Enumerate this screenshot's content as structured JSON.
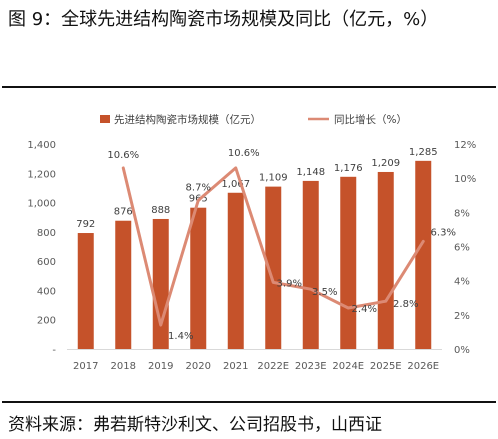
{
  "figure": {
    "title": "图 9：全球先进结构陶瓷市场规模及同比（亿元，%）",
    "source": "资料来源：弗若斯特沙利文、公司招股书，山西证"
  },
  "chart_data": {
    "type": "bar+line",
    "categories": [
      "2017",
      "2018",
      "2019",
      "2020",
      "2021",
      "2022E",
      "2023E",
      "2024E",
      "2025E",
      "2026E"
    ],
    "series": [
      {
        "name": "先进结构陶瓷市场规模（亿元）",
        "type": "bar",
        "axis": "left",
        "color": "#C5522A",
        "values": [
          792,
          876,
          888,
          965,
          1067,
          1109,
          1148,
          1176,
          1209,
          1285
        ],
        "labels": [
          "792",
          "876",
          "888",
          "965",
          "1,067",
          "1,109",
          "1,148",
          "1,176",
          "1,209",
          "1,285"
        ]
      },
      {
        "name": "同比增长（%）",
        "type": "line",
        "axis": "right",
        "color": "#DC8A74",
        "values": [
          null,
          10.6,
          1.4,
          8.7,
          10.6,
          3.9,
          3.5,
          2.4,
          2.8,
          6.3
        ],
        "labels": [
          null,
          "10.6%",
          "1.4%",
          "8.7%",
          "10.6%",
          "3.9%",
          "3.5%",
          "2.4%",
          "2.8%",
          "6.3%"
        ]
      }
    ],
    "left_axis": {
      "min": 0,
      "max": 1400,
      "ticks": [
        0,
        200,
        400,
        600,
        800,
        1000,
        1200,
        1400
      ],
      "tick_labels": [
        "-",
        "200",
        "400",
        "600",
        "800",
        "1,000",
        "1,200",
        "1,400"
      ]
    },
    "right_axis": {
      "min": 0,
      "max": 12,
      "ticks": [
        0,
        2,
        4,
        6,
        8,
        10,
        12
      ],
      "tick_labels": [
        "0%",
        "2%",
        "4%",
        "6%",
        "8%",
        "10%",
        "12%"
      ]
    },
    "grid": false,
    "legend_position": "top"
  }
}
